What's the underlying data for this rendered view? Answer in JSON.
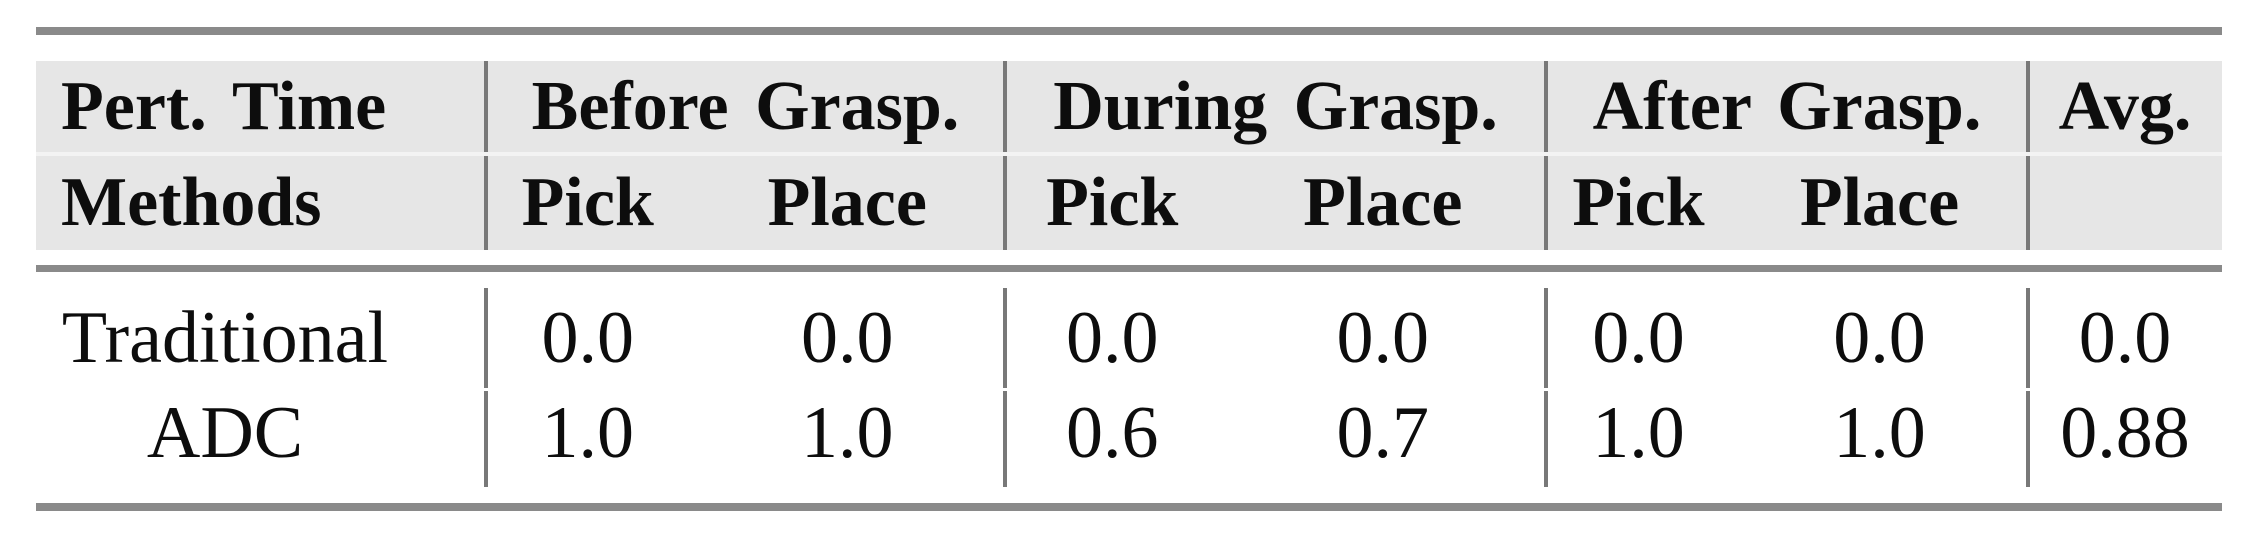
{
  "table": {
    "header": {
      "corner_row1": "Pert. Time",
      "corner_row2": "Methods",
      "groups": [
        {
          "label": "Before Grasp.",
          "sub": [
            "Pick",
            "Place"
          ]
        },
        {
          "label": "During Grasp.",
          "sub": [
            "Pick",
            "Place"
          ]
        },
        {
          "label": "After Grasp.",
          "sub": [
            "Pick",
            "Place"
          ]
        }
      ],
      "avg_label": "Avg."
    },
    "rows": [
      {
        "method": "Traditional",
        "values": [
          "0.0",
          "0.0",
          "0.0",
          "0.0",
          "0.0",
          "0.0"
        ],
        "avg": "0.0"
      },
      {
        "method": "ADC",
        "values": [
          "1.0",
          "1.0",
          "0.6",
          "0.7",
          "1.0",
          "1.0"
        ],
        "avg": "0.88"
      }
    ],
    "colors": {
      "rule": "#8a8a8a",
      "separator": "#787878",
      "header_bg": "#e6e6e6",
      "header_seam": "#f3f3f3",
      "text": "#0d0d0d",
      "page_bg": "#ffffff"
    }
  },
  "chart_data": {
    "type": "table",
    "title": "",
    "column_groups": [
      "Before Grasp.",
      "During Grasp.",
      "After Grasp.",
      "Avg."
    ],
    "columns": [
      "Methods",
      "Before Pick",
      "Before Place",
      "During Pick",
      "During Place",
      "After Pick",
      "After Place",
      "Avg."
    ],
    "rows": [
      [
        "Traditional",
        0.0,
        0.0,
        0.0,
        0.0,
        0.0,
        0.0,
        0.0
      ],
      [
        "ADC",
        1.0,
        1.0,
        0.6,
        0.7,
        1.0,
        1.0,
        0.88
      ]
    ]
  }
}
